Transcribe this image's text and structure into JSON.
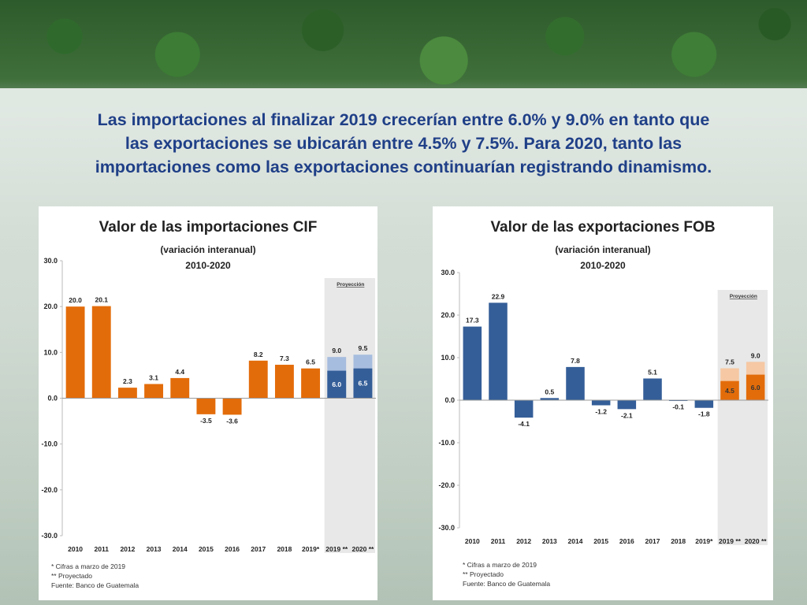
{
  "headline": {
    "line1": "Las importaciones al finalizar 2019 crecerían entre 6.0% y 9.0% en  tanto que",
    "line2": "las exportaciones se ubicarán entre 4.5% y 7.5%. Para 2020,  tanto las",
    "line3": "importaciones como las exportaciones continuarían  registrando dinamismo."
  },
  "colors": {
    "headline": "#1f3f87",
    "import_bar": "#e36c0a",
    "export_bar": "#345e98",
    "proj_light_blue": "#a7bddf",
    "proj_light_orange": "#f6c8a3",
    "projection_band": "#e8e8e8"
  },
  "chart_data": [
    {
      "type": "bar",
      "title": "Valor de las importaciones CIF",
      "subtitle": "(variación interanual)",
      "period": "2010-2020",
      "categories": [
        "2010",
        "2011",
        "2012",
        "2013",
        "2014",
        "2015",
        "2016",
        "2017",
        "2018",
        "2019*",
        "2019 **",
        "2020 **"
      ],
      "values": [
        20.0,
        20.1,
        2.3,
        3.1,
        4.4,
        -3.5,
        -3.6,
        8.2,
        7.3,
        6.5,
        6.0,
        6.5
      ],
      "value_labels": [
        "20.0",
        "20.1",
        "2.3",
        "3.1",
        "4.4",
        "-3.5",
        "-3.6",
        "8.2",
        "7.3",
        "6.5",
        "6.0",
        "6.5"
      ],
      "projection_upper": [
        null,
        null,
        null,
        null,
        null,
        null,
        null,
        null,
        null,
        null,
        9.0,
        9.5
      ],
      "projection_upper_labels": [
        "",
        "",
        "",
        "",
        "",
        "",
        "",
        "",
        "",
        "",
        "9.0",
        "9.5"
      ],
      "projection_label": "Proyección",
      "ylim": [
        -30,
        30
      ],
      "yticks": [
        "30.0",
        "20.0",
        "10.0",
        "0.0",
        "-10.0",
        "-20.0",
        "-30.0"
      ],
      "footnotes": [
        "* Cifras a marzo de 2019",
        "** Proyectado",
        "Fuente: Banco de Guatemala"
      ]
    },
    {
      "type": "bar",
      "title": "Valor de las exportaciones FOB",
      "subtitle": "(variación interanual)",
      "period": "2010-2020",
      "categories": [
        "2010",
        "2011",
        "2012",
        "2013",
        "2014",
        "2015",
        "2016",
        "2017",
        "2018",
        "2019*",
        "2019 **",
        "2020 **"
      ],
      "values": [
        17.3,
        22.9,
        -4.1,
        0.5,
        7.8,
        -1.2,
        -2.1,
        5.1,
        -0.1,
        -1.8,
        4.5,
        6.0
      ],
      "value_labels": [
        "17.3",
        "22.9",
        "-4.1",
        "0.5",
        "7.8",
        "-1.2",
        "-2.1",
        "5.1",
        "-0.1",
        "-1.8",
        "4.5",
        "6.0"
      ],
      "projection_upper": [
        null,
        null,
        null,
        null,
        null,
        null,
        null,
        null,
        null,
        null,
        7.5,
        9.0
      ],
      "projection_upper_labels": [
        "",
        "",
        "",
        "",
        "",
        "",
        "",
        "",
        "",
        "",
        "7.5",
        "9.0"
      ],
      "projection_label": "Proyección",
      "ylim": [
        -30,
        30
      ],
      "yticks": [
        "30.0",
        "20.0",
        "10.0",
        "0.0",
        "-10.0",
        "-20.0",
        "-30.0"
      ],
      "footnotes": [
        "* Cifras a marzo de 2019",
        "** Proyectado",
        "Fuente: Banco de Guatemala"
      ]
    }
  ]
}
